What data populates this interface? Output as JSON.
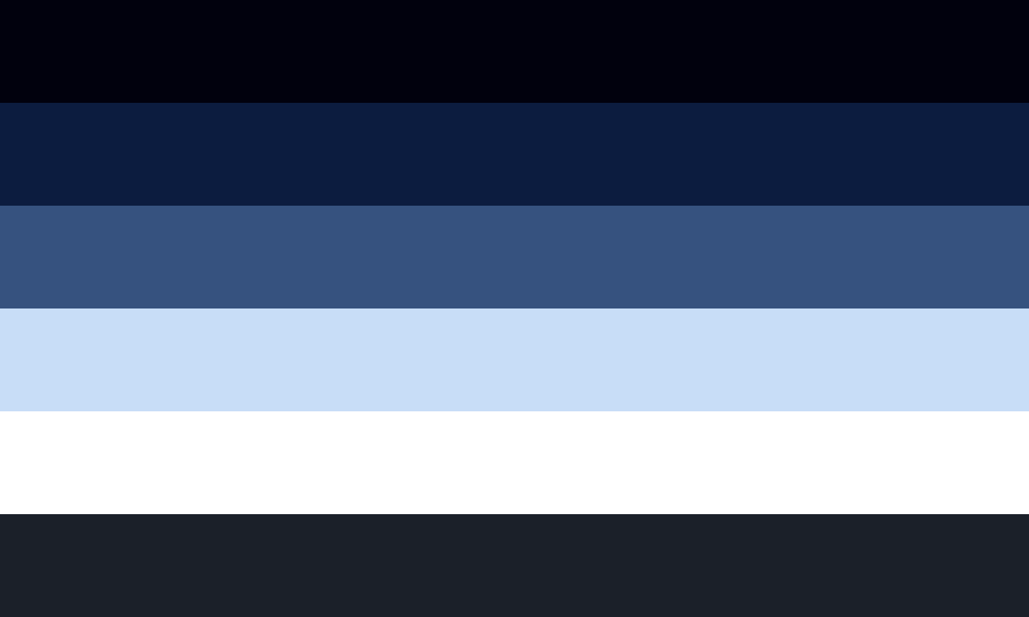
{
  "palette": {
    "stripes": [
      {
        "color": "#01010D"
      },
      {
        "color": "#0C1C3F"
      },
      {
        "color": "#36527F"
      },
      {
        "color": "#C8DDF7"
      },
      {
        "color": "#FFFFFF"
      },
      {
        "color": "#1B2029"
      }
    ]
  }
}
